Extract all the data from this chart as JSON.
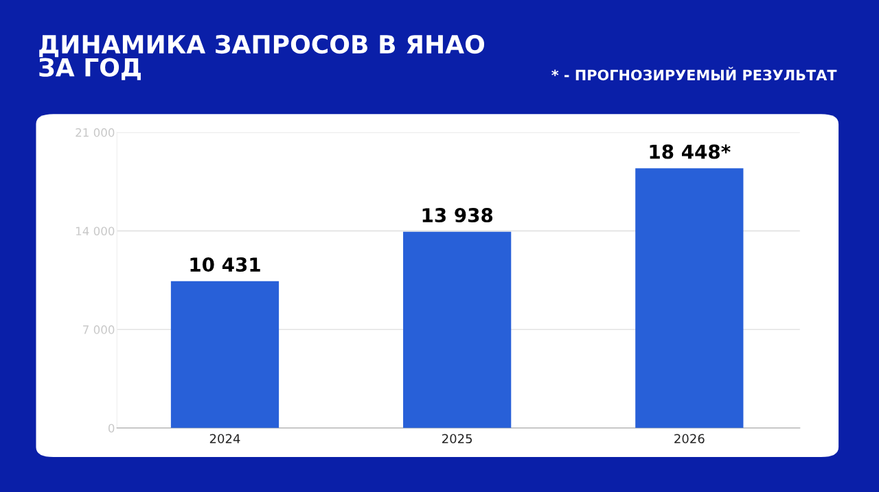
{
  "chart_data": {
    "type": "bar",
    "title": "ДИНАМИКА ЗАПРОСОВ В ЯНАО\nЗА ГОД",
    "annotations": [
      "* - ПРОГНОЗИРУЕМЫЙ РЕЗУЛЬТАТ"
    ],
    "categories": [
      "2024",
      "2025",
      "2026"
    ],
    "values": [
      10431,
      13938,
      18448
    ],
    "value_labels": [
      "10 431",
      "13 938",
      "18 448*"
    ],
    "color": "#2860d8",
    "ylim": [
      0,
      21000
    ],
    "yticks": [
      0,
      {
        "value": 7000,
        "label": "7 000"
      },
      {
        "value": 14000,
        "label": "14 000"
      },
      {
        "value": 21000,
        "label": "21 000"
      }
    ],
    "grid": "y",
    "legend": false
  }
}
